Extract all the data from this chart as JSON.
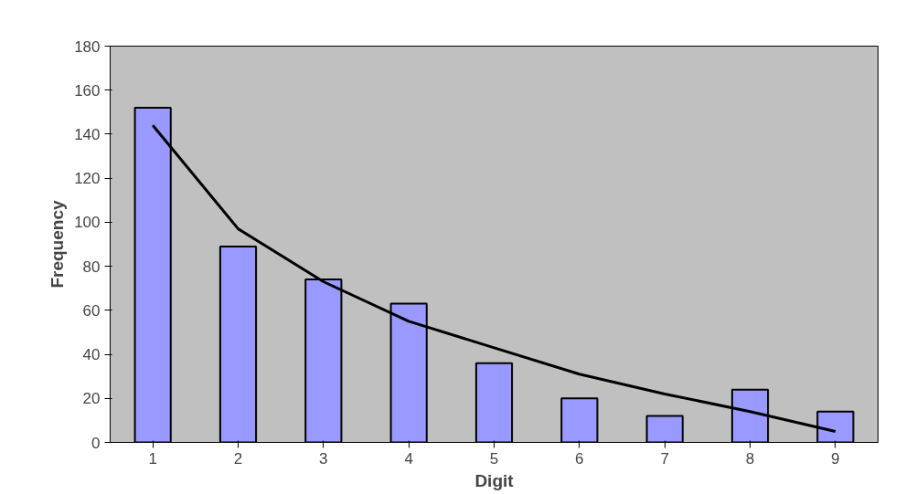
{
  "chart_data": {
    "type": "bar",
    "xlabel": "Digit",
    "ylabel": "Frequency",
    "categories": [
      "1",
      "2",
      "3",
      "4",
      "5",
      "6",
      "7",
      "8",
      "9"
    ],
    "series": [
      {
        "color": "#9999ff",
        "values": [
          152,
          89,
          74,
          63,
          36,
          20,
          12,
          24,
          14
        ]
      },
      {
        "type": "line",
        "color": "#000000",
        "x": [
          "1",
          "2",
          "3",
          "4",
          "5",
          "6",
          "7",
          "8",
          "9"
        ],
        "values": [
          144,
          97,
          73,
          55,
          43,
          31,
          22,
          14,
          5
        ]
      }
    ],
    "ylim": [
      0,
      180
    ],
    "yticks": [
      0,
      20,
      40,
      60,
      80,
      100,
      120,
      140,
      160,
      180
    ],
    "grid": false,
    "marker": "none",
    "line_style": "solid"
  }
}
